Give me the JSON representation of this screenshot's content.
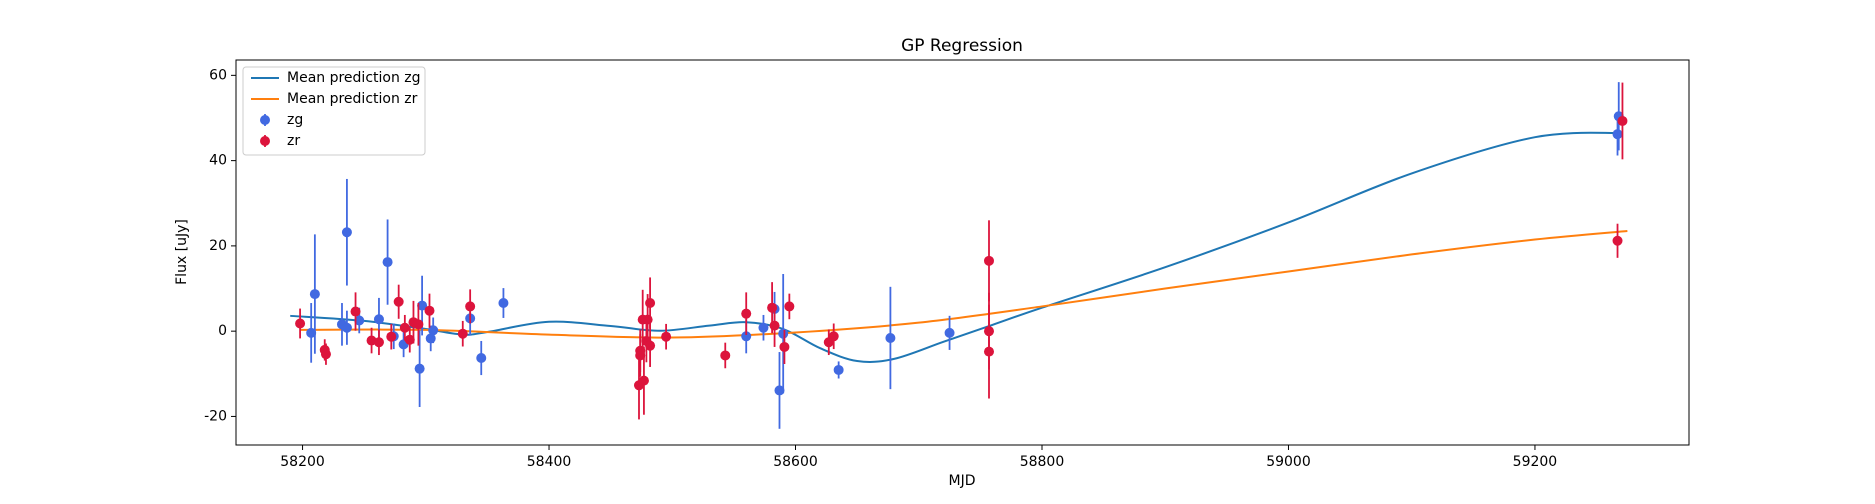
{
  "chart_data": {
    "type": "line",
    "title": "GP Regression",
    "x_label": "MJD",
    "y_label": "Flux [uJy]",
    "xlim": [
      58146,
      59325
    ],
    "ylim": [
      -26.7,
      63.6
    ],
    "xticks": [
      58200,
      58400,
      58600,
      58800,
      59000,
      59200
    ],
    "yticks": [
      -20,
      0,
      20,
      40,
      60
    ],
    "legend": "upper left",
    "series": [
      {
        "name": "Mean prediction zg",
        "type": "line",
        "color": "#1f77b4",
        "x": [
          58190,
          58250,
          58300,
          58330,
          58350,
          58400,
          58450,
          58490,
          58530,
          58560,
          58590,
          58620,
          58650,
          58680,
          58720,
          58760,
          58800,
          58900,
          59000,
          59100,
          59200,
          59270
        ],
        "values": [
          3.6,
          2.4,
          0.5,
          -0.8,
          -0.2,
          2.2,
          1.2,
          0.1,
          1.3,
          2.1,
          0.5,
          -4,
          -7,
          -6.5,
          -2.5,
          1.5,
          5.5,
          15,
          25.5,
          37,
          45.5,
          46.5
        ]
      },
      {
        "name": "Mean prediction zr",
        "type": "line",
        "color": "#ff7f0e",
        "x": [
          58198,
          58300,
          58400,
          58500,
          58600,
          58700,
          58800,
          58900,
          59000,
          59100,
          59200,
          59275
        ],
        "values": [
          0.3,
          0.3,
          -0.8,
          -1.5,
          -0.3,
          2,
          5.8,
          10,
          14,
          18,
          21.5,
          23.5
        ]
      },
      {
        "name": "zg",
        "type": "errorbar",
        "color": "#4169e1",
        "x": [
          58207,
          58210,
          58232,
          58236,
          58236,
          58246,
          58262,
          58269,
          58274,
          58282,
          58295,
          58297,
          58304,
          58306,
          58336,
          58345,
          58363,
          58560,
          58574,
          58583,
          58587,
          58590,
          58635,
          58677,
          58725,
          59267,
          59268
        ],
        "values": [
          -0.4,
          8.7,
          1.6,
          23.2,
          0.8,
          2.5,
          2.8,
          16.2,
          -1.2,
          -3.1,
          -8.8,
          6,
          -1.7,
          0.2,
          3,
          -6.3,
          6.6,
          -1.2,
          0.8,
          5.2,
          -13.9,
          -0.6,
          -9.1,
          -1.6,
          -0.4,
          46.2,
          50.4
        ],
        "errors": [
          7,
          14,
          5,
          12.5,
          4,
          3,
          5,
          10,
          3,
          3,
          9,
          7,
          3,
          3,
          4,
          4,
          3.5,
          4,
          3,
          4,
          9,
          14,
          2,
          12,
          4,
          5,
          8
        ]
      },
      {
        "name": "zr",
        "type": "errorbar",
        "color": "#dc143c",
        "x": [
          58198,
          58218,
          58219,
          58243,
          58256,
          58262,
          58272,
          58278,
          58283,
          58287,
          58290,
          58294,
          58303,
          58330,
          58336,
          58473,
          58474,
          58474,
          58476,
          58477,
          58479,
          58480,
          58482,
          58482,
          58495,
          58543,
          58560,
          58581,
          58583,
          58591,
          58595,
          58627,
          58631,
          58757,
          58757,
          58757,
          59267,
          59271
        ],
        "values": [
          1.8,
          -4.4,
          -5.4,
          4.6,
          -2.2,
          -2.6,
          -1.3,
          6.9,
          0.8,
          -2,
          2.1,
          1.6,
          4.8,
          -0.6,
          5.8,
          -12.7,
          -4.6,
          -5.7,
          2.7,
          -11.6,
          -2.3,
          2.7,
          6.6,
          -3.4,
          -1.3,
          -5.7,
          4.1,
          5.5,
          1.3,
          -3.7,
          5.8,
          -2.6,
          -1.2,
          16.5,
          0,
          -4.8,
          21.2,
          49.3
        ],
        "errors": [
          3.5,
          2.5,
          2.5,
          4.5,
          3,
          3,
          3,
          4,
          3,
          3,
          5,
          5,
          4,
          3,
          4,
          8,
          5,
          5,
          7,
          8,
          5,
          6,
          6,
          5,
          3,
          3,
          5,
          6,
          5,
          4,
          3,
          3,
          3,
          9.5,
          9,
          11,
          4,
          9
        ]
      }
    ]
  }
}
